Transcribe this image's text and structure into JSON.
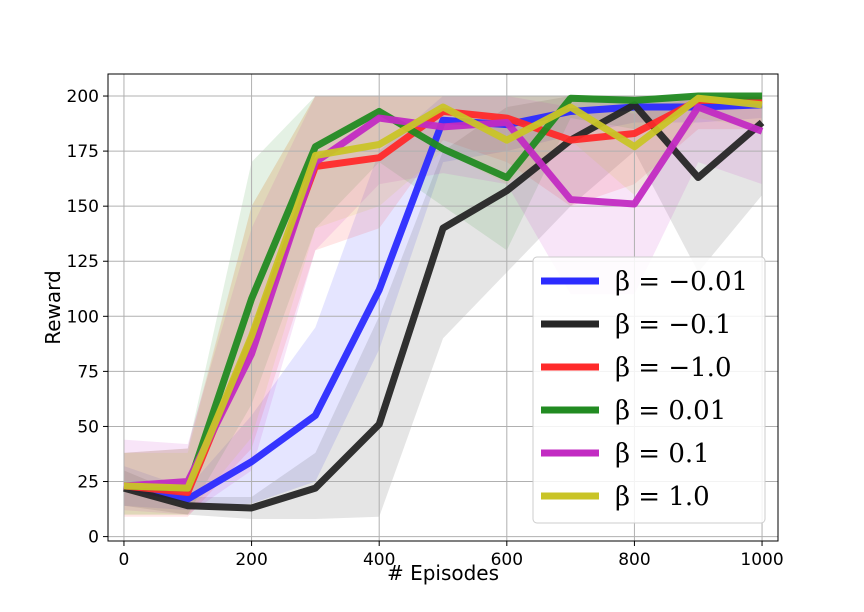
{
  "chart_data": {
    "type": "line",
    "title": "",
    "xlabel": "# Episodes",
    "ylabel": "Reward",
    "xlim": [
      -25,
      1025
    ],
    "ylim": [
      -2,
      210
    ],
    "xticks": [
      0,
      200,
      400,
      600,
      800,
      1000
    ],
    "yticks": [
      0,
      25,
      50,
      75,
      100,
      125,
      150,
      175,
      200
    ],
    "grid": true,
    "legend_position": "lower-right",
    "x": [
      0,
      100,
      200,
      300,
      400,
      500,
      600,
      700,
      800,
      900,
      1000
    ],
    "series": [
      {
        "name": "β = −0.01",
        "color": "#2b2bff",
        "values": [
          23,
          17,
          34,
          55,
          112,
          189,
          187,
          193,
          195,
          195,
          196
        ],
        "lower": [
          14,
          12,
          15,
          25,
          85,
          170,
          175,
          182,
          188,
          188,
          190
        ],
        "upper": [
          32,
          22,
          55,
          95,
          175,
          200,
          200,
          200,
          200,
          200,
          200
        ]
      },
      {
        "name": "β = −0.1",
        "color": "#262626",
        "values": [
          22,
          14,
          13,
          22,
          51,
          140,
          157,
          180,
          196,
          163,
          188
        ],
        "lower": [
          14,
          10,
          8,
          8,
          9,
          90,
          120,
          150,
          175,
          120,
          155
        ],
        "upper": [
          30,
          18,
          18,
          38,
          100,
          175,
          195,
          200,
          200,
          198,
          200
        ]
      },
      {
        "name": "β = −1.0",
        "color": "#ff2a2a",
        "values": [
          23,
          20,
          90,
          168,
          172,
          193,
          190,
          180,
          183,
          198,
          198
        ],
        "lower": [
          9,
          9,
          40,
          130,
          140,
          180,
          170,
          150,
          160,
          185,
          185
        ],
        "upper": [
          38,
          40,
          150,
          200,
          200,
          200,
          200,
          200,
          200,
          200,
          200
        ]
      },
      {
        "name": "β = 0.01",
        "color": "#228b22",
        "values": [
          23,
          22,
          108,
          177,
          193,
          176,
          163,
          199,
          198,
          200,
          200
        ],
        "lower": [
          10,
          10,
          60,
          140,
          170,
          150,
          130,
          190,
          185,
          195,
          195
        ],
        "upper": [
          38,
          40,
          170,
          200,
          200,
          200,
          200,
          200,
          200,
          200,
          200
        ]
      },
      {
        "name": "β = 0.1",
        "color": "#c22bc2",
        "values": [
          23,
          25,
          83,
          170,
          190,
          186,
          188,
          153,
          151,
          195,
          184
        ],
        "lower": [
          12,
          10,
          30,
          130,
          160,
          165,
          160,
          110,
          110,
          170,
          160
        ],
        "upper": [
          44,
          42,
          140,
          200,
          200,
          200,
          200,
          195,
          192,
          200,
          200
        ]
      },
      {
        "name": "β = 1.0",
        "color": "#c9c427",
        "values": [
          23,
          22,
          91,
          173,
          178,
          195,
          180,
          195,
          177,
          199,
          196
        ],
        "lower": [
          10,
          10,
          45,
          140,
          150,
          175,
          160,
          180,
          155,
          190,
          185
        ],
        "upper": [
          38,
          38,
          150,
          200,
          200,
          200,
          200,
          200,
          200,
          200,
          200
        ]
      }
    ]
  }
}
